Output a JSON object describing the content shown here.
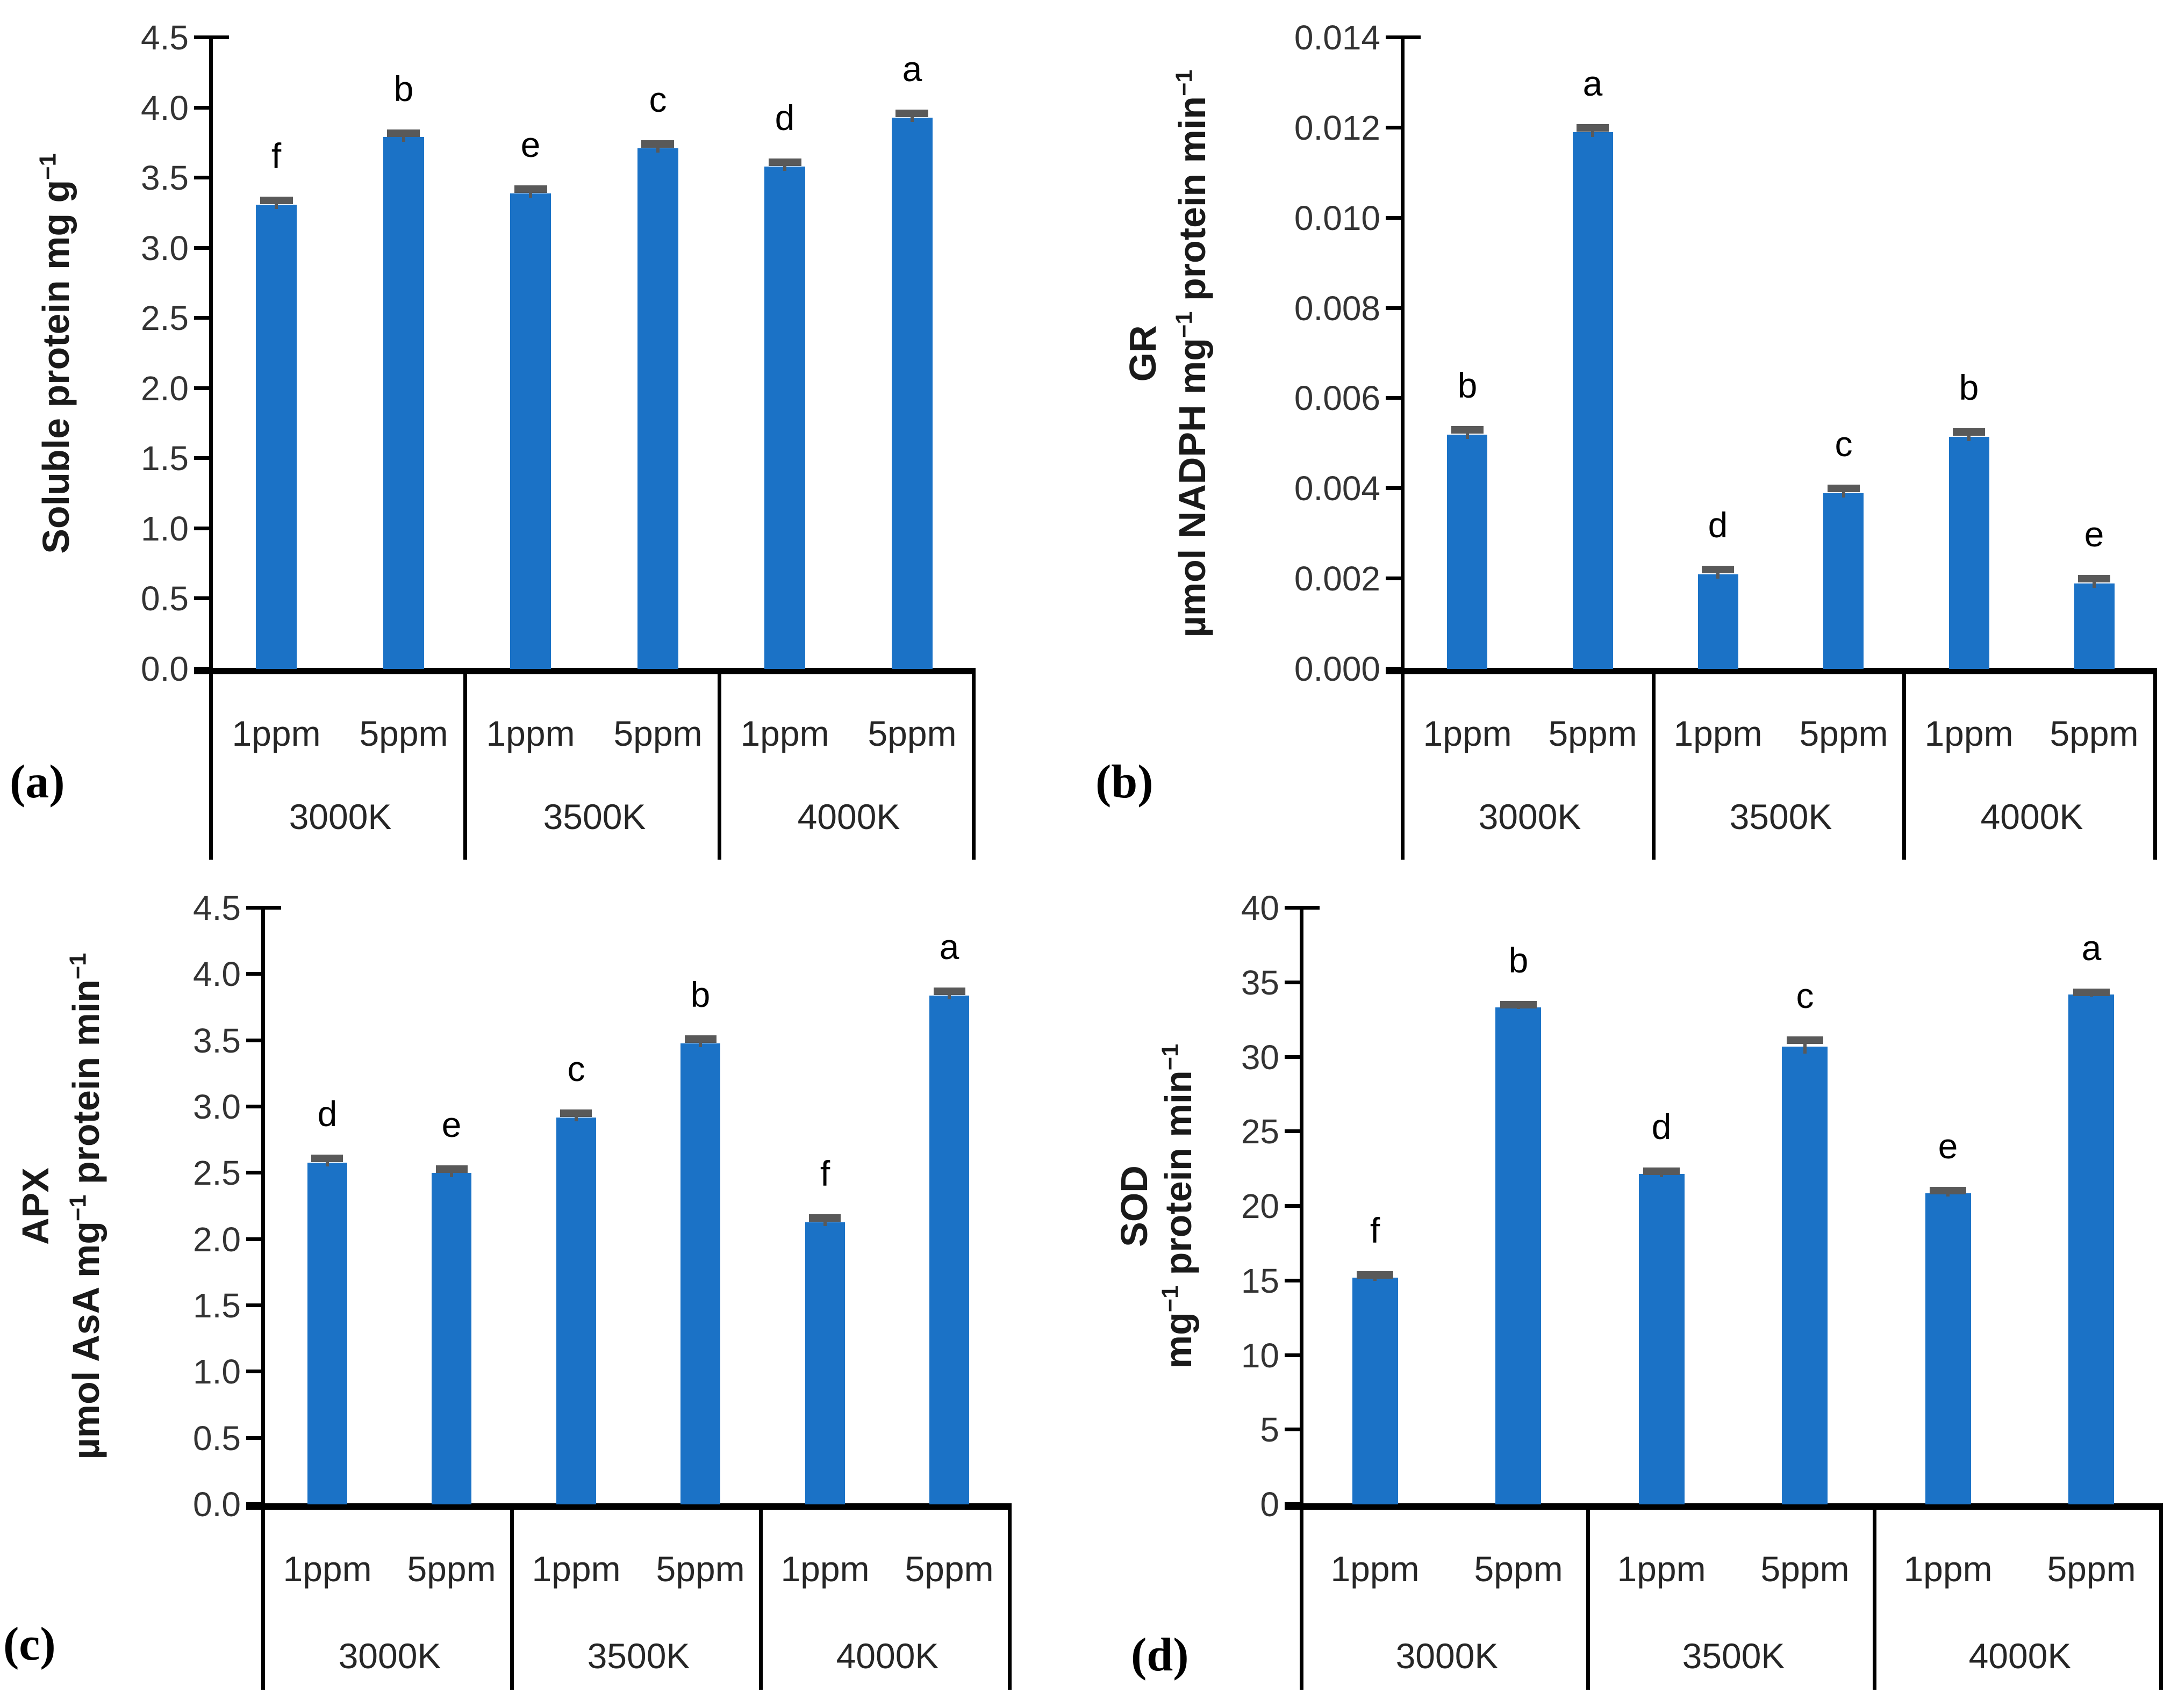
{
  "style": {
    "bar_color": "#1B72C6",
    "error_bar_color": "#595959",
    "axis_line_color": "#000000",
    "tick_label_color": "#333333",
    "category_label_color": "#262626",
    "letter_color": "#000000",
    "background": "#FFFFFF"
  },
  "chart_data": [
    {
      "type": "bar",
      "panel_label": "(a)",
      "ylabel_lines": [
        [
          {
            "t": "Soluble protein mg g"
          },
          {
            "t": "−1",
            "sup": true
          }
        ]
      ],
      "axis": {
        "min": 0,
        "max": 4.5,
        "step": 0.5,
        "decimals": 1
      },
      "x_sub_labels": [
        "1ppm",
        "5ppm"
      ],
      "groups": [
        {
          "temp": "3000K",
          "bars": [
            {
              "ppm": "1ppm",
              "value": 3.31,
              "err": 0.03,
              "letter": "f"
            },
            {
              "ppm": "5ppm",
              "value": 3.79,
              "err": 0.03,
              "letter": "b"
            }
          ]
        },
        {
          "temp": "3500K",
          "bars": [
            {
              "ppm": "1ppm",
              "value": 3.39,
              "err": 0.03,
              "letter": "e"
            },
            {
              "ppm": "5ppm",
              "value": 3.71,
              "err": 0.03,
              "letter": "c"
            }
          ]
        },
        {
          "temp": "4000K",
          "bars": [
            {
              "ppm": "1ppm",
              "value": 3.58,
              "err": 0.03,
              "letter": "d"
            },
            {
              "ppm": "5ppm",
              "value": 3.93,
              "err": 0.03,
              "letter": "a"
            }
          ]
        }
      ]
    },
    {
      "type": "bar",
      "panel_label": "(b)",
      "ylabel_lines": [
        [
          {
            "t": "GR"
          }
        ],
        [
          {
            "t": "µmol NADPH mg"
          },
          {
            "t": "−1",
            "sup": true
          },
          {
            "t": " protein min"
          },
          {
            "t": "−1",
            "sup": true
          }
        ]
      ],
      "axis": {
        "min": 0,
        "max": 0.014,
        "step": 0.002,
        "decimals": 3
      },
      "x_sub_labels": [
        "1ppm",
        "5ppm"
      ],
      "groups": [
        {
          "temp": "3000K",
          "bars": [
            {
              "ppm": "1ppm",
              "value": 0.0052,
              "err": 0.0001,
              "letter": "b"
            },
            {
              "ppm": "5ppm",
              "value": 0.0119,
              "err": 0.0001,
              "letter": "a"
            }
          ]
        },
        {
          "temp": "3500K",
          "bars": [
            {
              "ppm": "1ppm",
              "value": 0.0021,
              "err": 0.0001,
              "letter": "d"
            },
            {
              "ppm": "5ppm",
              "value": 0.0039,
              "err": 0.0001,
              "letter": "c"
            }
          ]
        },
        {
          "temp": "4000K",
          "bars": [
            {
              "ppm": "1ppm",
              "value": 0.00515,
              "err": 0.0001,
              "letter": "b"
            },
            {
              "ppm": "5ppm",
              "value": 0.0019,
              "err": 0.0001,
              "letter": "e"
            }
          ]
        }
      ]
    },
    {
      "type": "bar",
      "panel_label": "(c)",
      "ylabel_lines": [
        [
          {
            "t": "APX"
          }
        ],
        [
          {
            "t": "µmol AsA mg"
          },
          {
            "t": "−1",
            "sup": true
          },
          {
            "t": " protein min"
          },
          {
            "t": "−1",
            "sup": true
          }
        ]
      ],
      "axis": {
        "min": 0,
        "max": 4.5,
        "step": 0.5,
        "decimals": 1
      },
      "x_sub_labels": [
        "1ppm",
        "5ppm"
      ],
      "groups": [
        {
          "temp": "3000K",
          "bars": [
            {
              "ppm": "1ppm",
              "value": 2.58,
              "err": 0.03,
              "letter": "d"
            },
            {
              "ppm": "5ppm",
              "value": 2.5,
              "err": 0.03,
              "letter": "e"
            }
          ]
        },
        {
          "temp": "3500K",
          "bars": [
            {
              "ppm": "1ppm",
              "value": 2.92,
              "err": 0.03,
              "letter": "c"
            },
            {
              "ppm": "5ppm",
              "value": 3.48,
              "err": 0.03,
              "letter": "b"
            }
          ]
        },
        {
          "temp": "4000K",
          "bars": [
            {
              "ppm": "1ppm",
              "value": 2.13,
              "err": 0.03,
              "letter": "f"
            },
            {
              "ppm": "5ppm",
              "value": 3.84,
              "err": 0.03,
              "letter": "a"
            }
          ]
        }
      ]
    },
    {
      "type": "bar",
      "panel_label": "(d)",
      "ylabel_lines": [
        [
          {
            "t": "SOD"
          }
        ],
        [
          {
            "t": "mg"
          },
          {
            "t": "−1",
            "sup": true
          },
          {
            "t": " protein min"
          },
          {
            "t": "−1",
            "sup": true
          }
        ]
      ],
      "axis": {
        "min": 0,
        "max": 40,
        "step": 5,
        "decimals": 0
      },
      "x_sub_labels": [
        "1ppm",
        "5ppm"
      ],
      "groups": [
        {
          "temp": "3000K",
          "bars": [
            {
              "ppm": "1ppm",
              "value": 15.2,
              "err": 0.2,
              "letter": "f"
            },
            {
              "ppm": "5ppm",
              "value": 33.35,
              "err": 0.15,
              "letter": "b"
            }
          ]
        },
        {
          "temp": "3500K",
          "bars": [
            {
              "ppm": "1ppm",
              "value": 22.15,
              "err": 0.2,
              "letter": "d"
            },
            {
              "ppm": "5ppm",
              "value": 30.7,
              "err": 0.45,
              "letter": "c"
            }
          ]
        },
        {
          "temp": "4000K",
          "bars": [
            {
              "ppm": "1ppm",
              "value": 20.85,
              "err": 0.2,
              "letter": "e"
            },
            {
              "ppm": "5ppm",
              "value": 34.2,
              "err": 0.15,
              "letter": "a"
            }
          ]
        }
      ]
    }
  ]
}
